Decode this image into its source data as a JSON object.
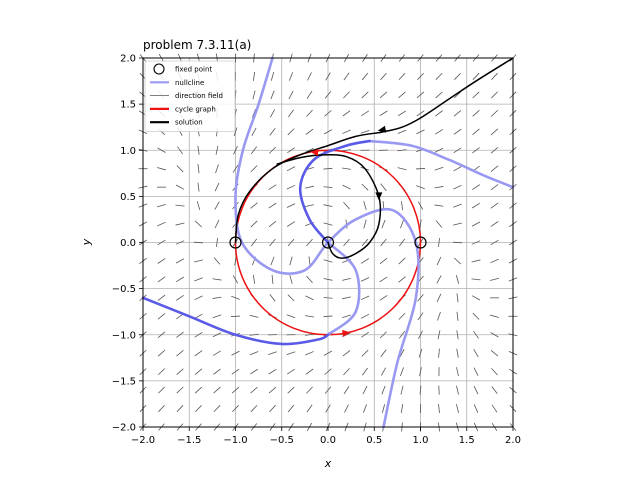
{
  "chart_data": {
    "type": "line",
    "title": "problem 7.3.11(a)",
    "xlabel": "x",
    "ylabel": "y",
    "xlim": [
      -2,
      2
    ],
    "ylim": [
      -2,
      2
    ],
    "grid": true,
    "xticks": [
      "−2.0",
      "−1.5",
      "−1.0",
      "−0.5",
      "0.0",
      "0.5",
      "1.0",
      "1.5",
      "2.0"
    ],
    "yticks": [
      "−2.0",
      "−1.5",
      "−1.0",
      "−0.5",
      "0.0",
      "0.5",
      "1.0",
      "1.5",
      "2.0"
    ],
    "legend": {
      "placement": "top-left",
      "entries": [
        {
          "label": "fixed point",
          "color": "#000000",
          "marker": "circle"
        },
        {
          "label": "nullcline",
          "color": "#9999f2",
          "marker": "line"
        },
        {
          "label": "direction field",
          "color": "#555555",
          "marker": "thin-line"
        },
        {
          "label": "cycle graph",
          "color": "#ee1111",
          "marker": "line"
        },
        {
          "label": "solution",
          "color": "#000000",
          "marker": "line"
        }
      ]
    },
    "fixed_points": [
      [
        -1,
        0
      ],
      [
        0,
        0
      ],
      [
        1,
        0
      ]
    ],
    "cycle": {
      "center": [
        0,
        0
      ],
      "radius": 1,
      "color": "#ee1111"
    },
    "series": [
      {
        "kind": "nullcline-light",
        "color": "#9999f2",
        "points": [
          [
            -0.6,
            2.0
          ],
          [
            -0.75,
            1.5
          ],
          [
            -0.92,
            1.0
          ],
          [
            -1.0,
            0.5
          ],
          [
            -0.93,
            0.0
          ],
          [
            -0.6,
            -0.3
          ],
          [
            -0.25,
            -0.3
          ],
          [
            0.0,
            0.0
          ],
          [
            0.3,
            0.25
          ],
          [
            0.7,
            0.35
          ],
          [
            0.95,
            0.0
          ],
          [
            0.95,
            -0.6
          ],
          [
            0.75,
            -1.3
          ],
          [
            0.6,
            -2.0
          ]
        ]
      },
      {
        "kind": "nullcline-light",
        "color": "#9999f2",
        "points": [
          [
            0.45,
            1.1
          ],
          [
            0.9,
            1.05
          ],
          [
            1.3,
            0.9
          ],
          [
            1.7,
            0.72
          ],
          [
            2.0,
            0.6
          ]
        ]
      },
      {
        "kind": "nullcline-light",
        "color": "#9999f2",
        "points": [
          [
            0.0,
            0.0
          ],
          [
            0.3,
            -0.3
          ],
          [
            0.3,
            -0.75
          ],
          [
            0.0,
            -1.0
          ]
        ]
      },
      {
        "kind": "nullcline-dark",
        "color": "#5a5ae8",
        "points": [
          [
            -2.0,
            -0.6
          ],
          [
            -1.5,
            -0.8
          ],
          [
            -1.0,
            -1.0
          ],
          [
            -0.5,
            -1.1
          ],
          [
            -0.1,
            -1.05
          ],
          [
            0.0,
            -1.0
          ]
        ]
      },
      {
        "kind": "nullcline-dark",
        "color": "#5a5ae8",
        "points": [
          [
            0.0,
            0.0
          ],
          [
            -0.2,
            0.25
          ],
          [
            -0.3,
            0.6
          ],
          [
            -0.15,
            0.9
          ],
          [
            0.2,
            1.05
          ],
          [
            0.45,
            1.1
          ]
        ]
      },
      {
        "kind": "solution",
        "color": "#000000",
        "points": [
          [
            -0.55,
            0.85
          ],
          [
            -0.3,
            0.92
          ],
          [
            -0.05,
            0.95
          ],
          [
            0.2,
            0.93
          ],
          [
            0.4,
            0.8
          ],
          [
            0.55,
            0.5
          ],
          [
            0.55,
            0.2
          ],
          [
            0.45,
            0.0
          ],
          [
            0.3,
            -0.12
          ],
          [
            0.15,
            -0.17
          ],
          [
            0.05,
            -0.12
          ],
          [
            0.0,
            0.0
          ]
        ]
      },
      {
        "kind": "solution",
        "color": "#000000",
        "points": [
          [
            -1.0,
            0.0
          ],
          [
            -0.97,
            0.3
          ],
          [
            -0.85,
            0.55
          ],
          [
            -0.6,
            0.8
          ],
          [
            -0.3,
            0.95
          ],
          [
            0.0,
            1.05
          ],
          [
            0.3,
            1.15
          ],
          [
            0.6,
            1.2
          ],
          [
            0.8,
            1.25
          ],
          [
            1.0,
            1.35
          ],
          [
            1.3,
            1.55
          ],
          [
            1.6,
            1.75
          ],
          [
            2.0,
            2.0
          ]
        ]
      }
    ],
    "arrows": [
      {
        "x": 0.58,
        "y": 1.22,
        "dx": -0.1,
        "dy": -0.02,
        "color": "#000000"
      },
      {
        "x": 0.55,
        "y": 0.5,
        "dx": 0.0,
        "dy": -0.1,
        "color": "#000000"
      },
      {
        "x": -0.15,
        "y": 0.98,
        "dx": -0.1,
        "dy": 0.01,
        "color": "#ee1111"
      },
      {
        "x": 0.2,
        "y": -0.98,
        "dx": 0.1,
        "dy": 0.01,
        "color": "#ee1111"
      }
    ]
  }
}
